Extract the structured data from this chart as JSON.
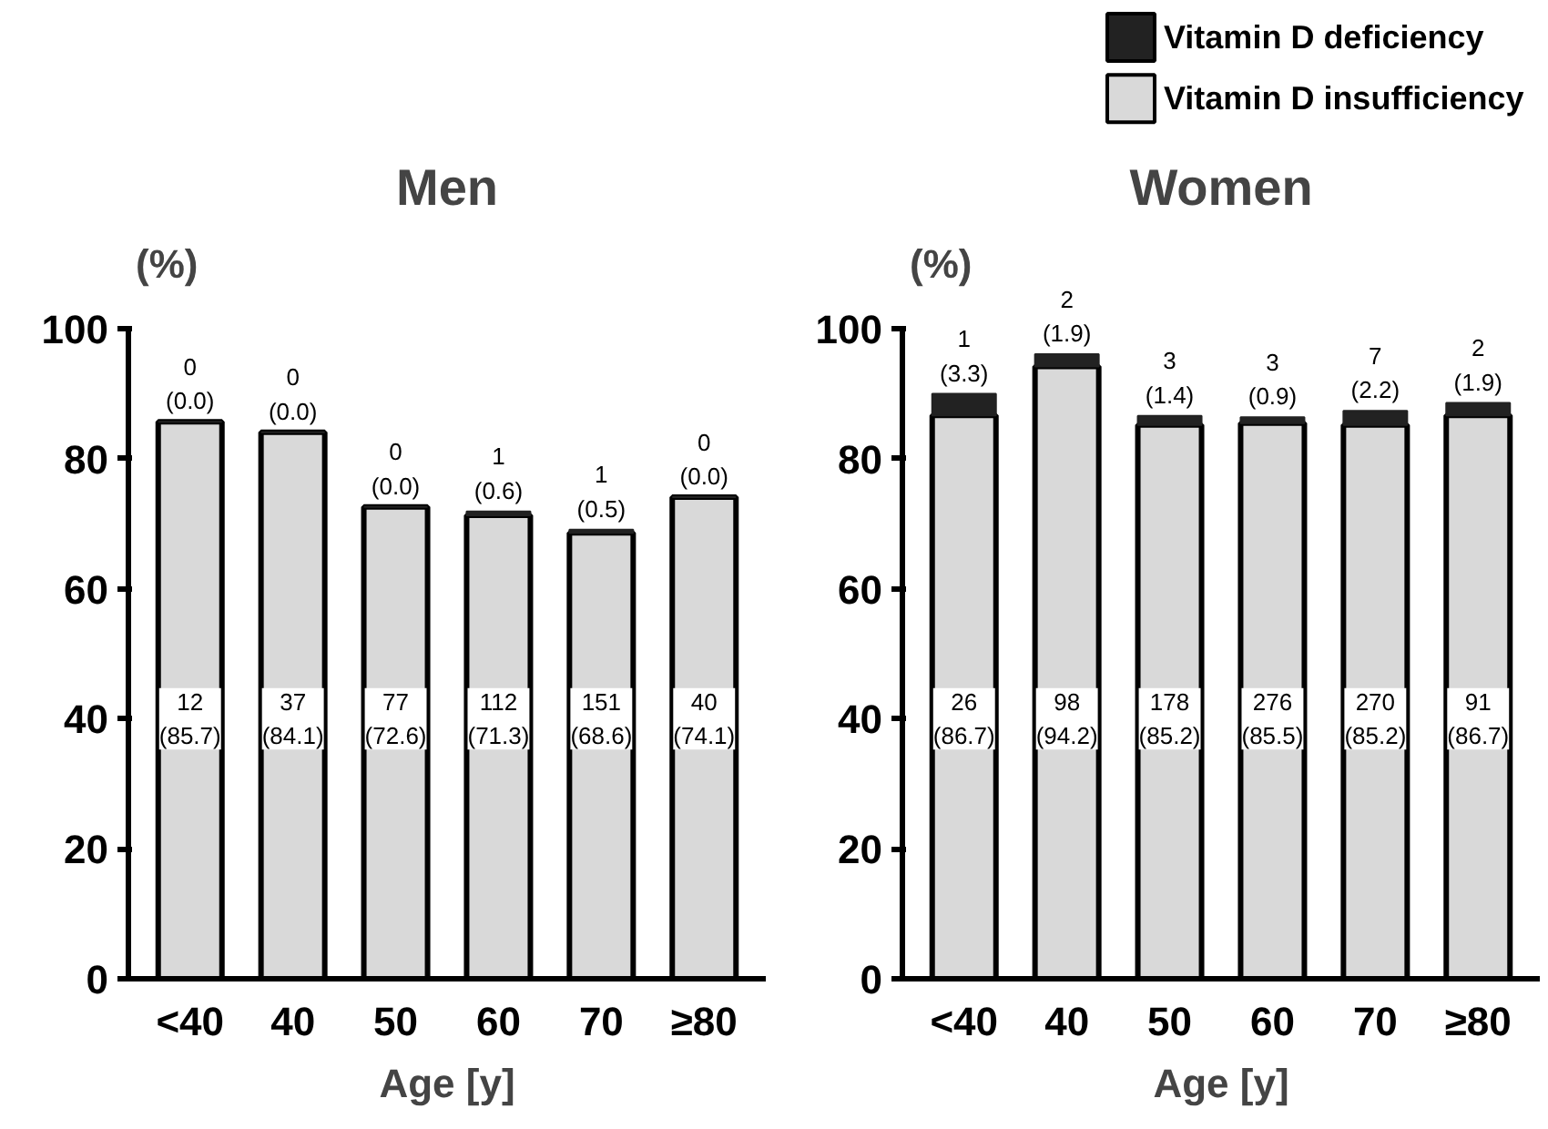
{
  "chart_data": [
    {
      "type": "bar",
      "title": "Men",
      "xlabel": "Age [y]",
      "ylabel": "(%)",
      "categories": [
        "<40",
        "40",
        "50",
        "60",
        "70",
        "≥80"
      ],
      "stacked": true,
      "ylim": [
        0,
        100
      ],
      "yticks": [
        0,
        20,
        40,
        60,
        80,
        100
      ],
      "grid": false,
      "series": [
        {
          "color": "#d9d9d9",
          "values": [
            85.7,
            84.1,
            72.6,
            71.3,
            68.6,
            74.1
          ],
          "value_labels": [
            "12\n(85.7)",
            "37\n(84.1)",
            "77\n(72.6)",
            "112\n(71.3)",
            "151\n(68.6)",
            "40\n(74.1)"
          ]
        },
        {
          "color": "#222222",
          "values": [
            0.0,
            0.0,
            0.0,
            0.6,
            0.5,
            0.0
          ],
          "value_labels": [
            "0\n(0.0)",
            "0\n(0.0)",
            "0\n(0.0)",
            "1\n(0.6)",
            "1\n(0.5)",
            "0\n(0.0)"
          ]
        }
      ]
    },
    {
      "type": "bar",
      "title": "Women",
      "xlabel": "Age [y]",
      "ylabel": "(%)",
      "categories": [
        "<40",
        "40",
        "50",
        "60",
        "70",
        "≥80"
      ],
      "stacked": true,
      "ylim": [
        0,
        100
      ],
      "yticks": [
        0,
        20,
        40,
        60,
        80,
        100
      ],
      "grid": false,
      "legend": "top right",
      "series": [
        {
          "name": "Vitamin D insufficiency",
          "color": "#d9d9d9",
          "values": [
            86.7,
            94.2,
            85.2,
            85.5,
            85.2,
            86.7
          ],
          "value_labels": [
            "26\n(86.7)",
            "98\n(94.2)",
            "178\n(85.2)",
            "276\n(85.5)",
            "270\n(85.2)",
            "91\n(86.7)"
          ]
        },
        {
          "name": "Vitamin D deficiency",
          "color": "#222222",
          "values": [
            3.3,
            1.9,
            1.4,
            0.9,
            2.2,
            1.9
          ],
          "value_labels": [
            "1\n(3.3)",
            "2\n(1.9)",
            "3\n(1.4)",
            "3\n(0.9)",
            "7\n(2.2)",
            "2\n(1.9)"
          ]
        }
      ]
    }
  ]
}
